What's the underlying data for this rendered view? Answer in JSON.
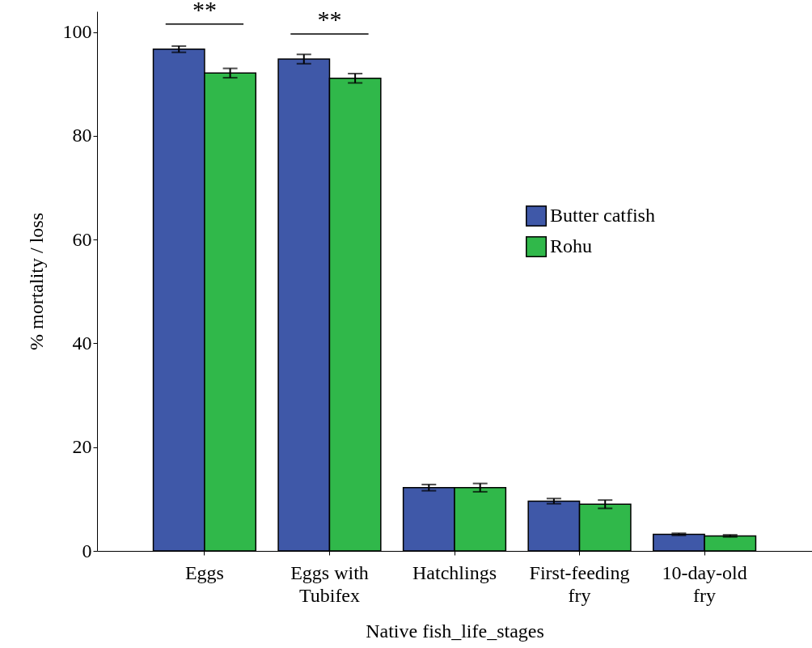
{
  "chart_data": {
    "type": "bar",
    "xlabel": "Native fish_life_stages",
    "ylabel": "% mortality / loss",
    "categories": [
      "Eggs",
      "Eggs with Tubifex",
      "Hatchlings",
      "First-feeding fry",
      "10-day-old fry"
    ],
    "series": [
      {
        "name": "Butter catfish",
        "color": "#3f58a8",
        "values": [
          96.7,
          94.8,
          12.2,
          9.6,
          3.2
        ],
        "errors": [
          0.6,
          0.9,
          0.6,
          0.5,
          0.2
        ]
      },
      {
        "name": "Rohu",
        "color": "#30b84a",
        "values": [
          92.1,
          91.1,
          12.2,
          9.0,
          2.9
        ],
        "errors": [
          0.9,
          0.9,
          0.8,
          0.8,
          0.2
        ]
      }
    ],
    "ylim": [
      0,
      104
    ],
    "yticks": [
      0,
      20,
      40,
      60,
      80,
      100
    ],
    "grid": false,
    "legend": "right",
    "annotations": [
      "**",
      "**"
    ]
  }
}
